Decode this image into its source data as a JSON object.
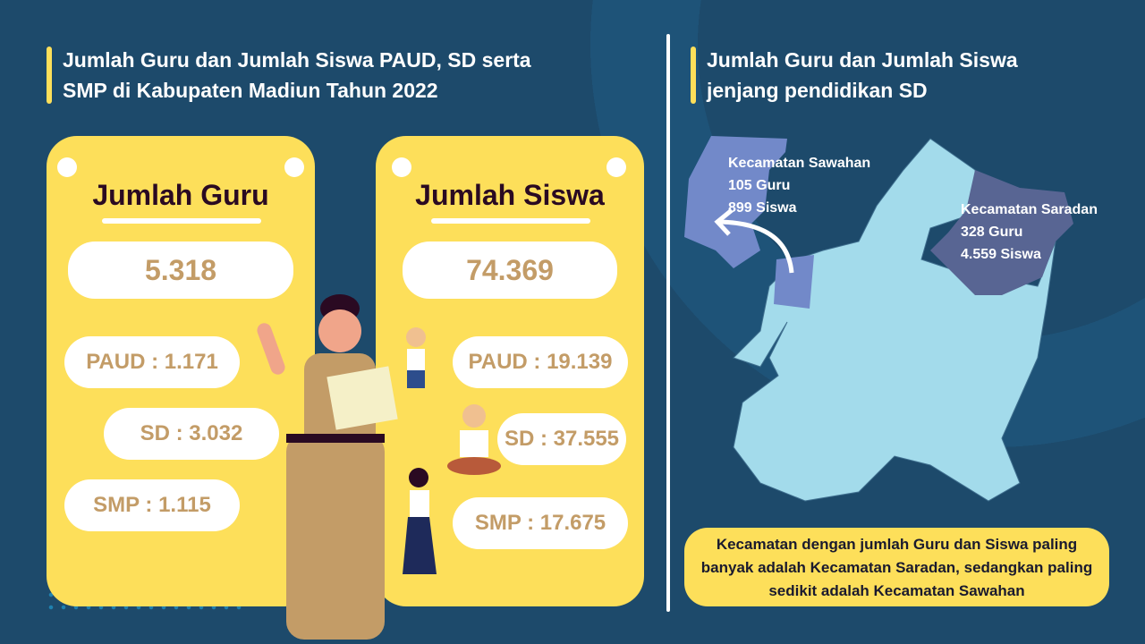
{
  "left": {
    "title_line1": "Jumlah Guru dan Jumlah Siswa PAUD, SD serta",
    "title_line2": "SMP di Kabupaten Madiun Tahun 2022"
  },
  "guru": {
    "title": "Jumlah Guru",
    "total": "5.318",
    "paud": "PAUD : 1.171",
    "sd": "SD : 3.032",
    "smp": "SMP : 1.115"
  },
  "siswa": {
    "title": "Jumlah Siswa",
    "total": "74.369",
    "paud": "PAUD : 19.139",
    "sd": "SD : 37.555",
    "smp": "SMP : 17.675"
  },
  "right": {
    "title_line1": "Jumlah Guru dan Jumlah Siswa",
    "title_line2": "jenjang pendidikan SD",
    "sawahan": {
      "name": "Kecamatan Sawahan",
      "guru": "105 Guru",
      "siswa": "899 Siswa"
    },
    "saradan": {
      "name": "Kecamatan Saradan",
      "guru": "328 Guru",
      "siswa": "4.559 Siswa"
    },
    "note": "Kecamatan dengan jumlah Guru dan Siswa paling banyak adalah Kecamatan Saradan, sedangkan paling sedikit adalah Kecamatan Sawahan"
  },
  "colors": {
    "background": "#1d4a6b",
    "card": "#fddf5a",
    "value": "#c39c67",
    "map": "#a3dbeb",
    "sawahan": "#7289c9",
    "saradan": "#586593"
  }
}
